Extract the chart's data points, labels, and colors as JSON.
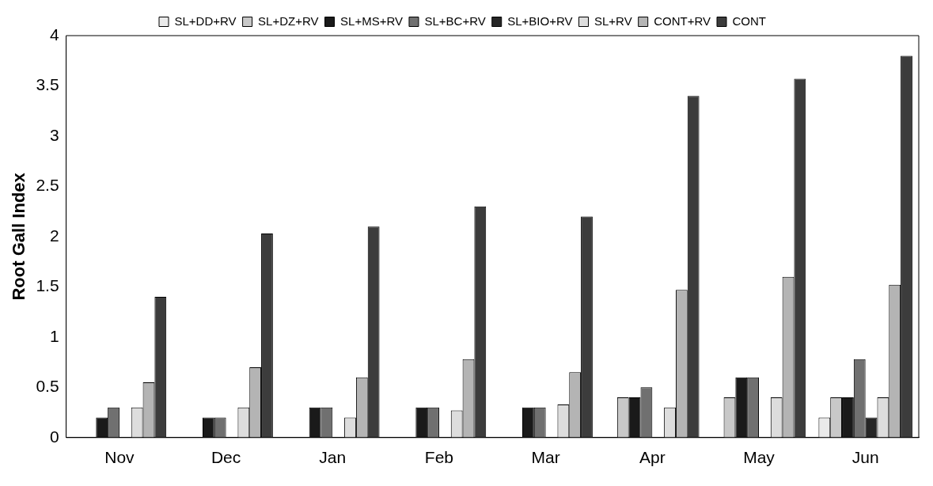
{
  "chart_data": {
    "type": "bar",
    "ylabel": "Root Gall Index",
    "categories": [
      "Nov",
      "Dec",
      "Jan",
      "Feb",
      "Mar",
      "Apr",
      "May",
      "Jun"
    ],
    "series": [
      {
        "name": "SL+DD+RV",
        "color": "#eaeaea",
        "values": [
          0,
          0,
          0,
          0,
          0,
          0,
          0,
          0.2
        ]
      },
      {
        "name": "SL+DZ+RV",
        "color": "#c8c8c8",
        "values": [
          0,
          0,
          0,
          0,
          0,
          0.4,
          0.4,
          0.4
        ]
      },
      {
        "name": "SL+MS+RV",
        "color": "#1a1a1a",
        "values": [
          0.2,
          0.2,
          0.3,
          0.3,
          0.3,
          0.4,
          0.6,
          0.4
        ]
      },
      {
        "name": "SL+BC+RV",
        "color": "#707070",
        "values": [
          0.3,
          0.2,
          0.3,
          0.3,
          0.3,
          0.5,
          0.6,
          0.78
        ]
      },
      {
        "name": "SL+BIO+RV",
        "color": "#262626",
        "values": [
          0,
          0,
          0,
          0,
          0,
          0,
          0,
          0.2
        ]
      },
      {
        "name": "SL+RV",
        "color": "#dddddd",
        "values": [
          0.3,
          0.3,
          0.2,
          0.27,
          0.33,
          0.3,
          0.4,
          0.4
        ]
      },
      {
        "name": "CONT+RV",
        "color": "#b4b4b4",
        "values": [
          0.55,
          0.7,
          0.6,
          0.78,
          0.65,
          1.47,
          1.6,
          1.52
        ]
      },
      {
        "name": "CONT",
        "color": "#3c3c3c",
        "values": [
          1.4,
          2.03,
          2.1,
          2.3,
          2.2,
          3.4,
          3.57,
          3.8
        ]
      }
    ],
    "ylim": [
      0,
      4
    ],
    "yticks": [
      0,
      0.5,
      1,
      1.5,
      2,
      2.5,
      3,
      3.5,
      4
    ],
    "grid": false,
    "legend": "top"
  }
}
